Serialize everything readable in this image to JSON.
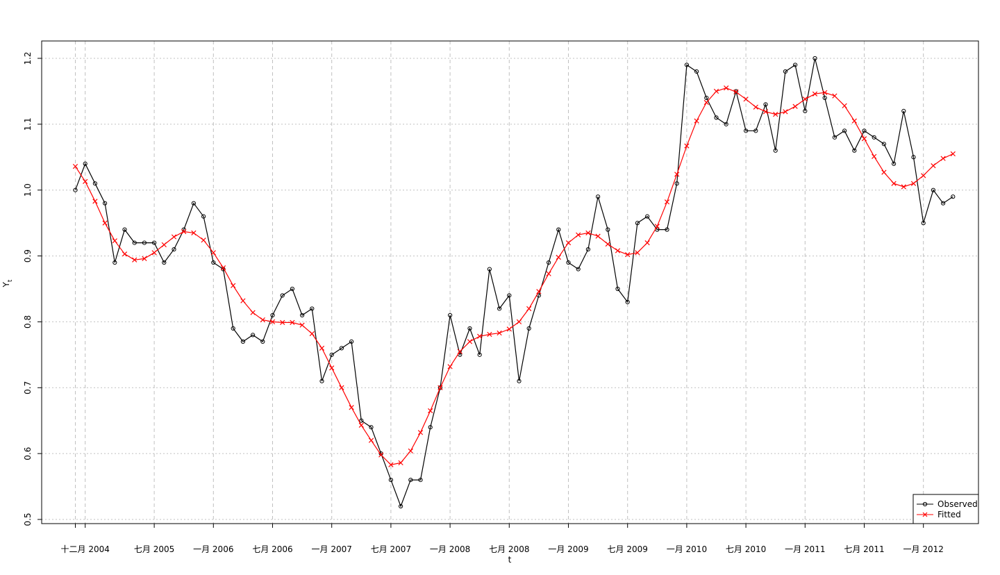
{
  "chart_data": {
    "type": "line",
    "xlabel": "t",
    "ylabel": "Y",
    "ylabel_subscript": "t",
    "ylim": [
      0.5,
      1.2
    ],
    "y_ticks": [
      0.5,
      0.6,
      0.7,
      0.8,
      0.9,
      1.0,
      1.1,
      1.2
    ],
    "y_tick_labels": [
      "0.5",
      "0.6",
      "0.7",
      "0.8",
      "0.9",
      "1.0",
      "1.1",
      "1.2"
    ],
    "x_start": "2004-12",
    "x_ticks": [
      {
        "label": "十二月 2004",
        "month_index": 0
      },
      {
        "label": "七月 2005",
        "month_index": 7
      },
      {
        "label": "一月 2006",
        "month_index": 13
      },
      {
        "label": "七月 2006",
        "month_index": 19
      },
      {
        "label": "一月 2007",
        "month_index": 25
      },
      {
        "label": "七月 2007",
        "month_index": 31
      },
      {
        "label": "一月 2008",
        "month_index": 37
      },
      {
        "label": "七月 2008",
        "month_index": 43
      },
      {
        "label": "一月 2009",
        "month_index": 49
      },
      {
        "label": "七月 2009",
        "month_index": 55
      },
      {
        "label": "一月 2010",
        "month_index": 61
      },
      {
        "label": "七月 2010",
        "month_index": 67
      },
      {
        "label": "一月 2011",
        "month_index": 73
      },
      {
        "label": "七月 2011",
        "month_index": 79
      },
      {
        "label": "一月 2012",
        "month_index": 85
      }
    ],
    "grid": true,
    "legend_position": "bottom-right",
    "colors": {
      "observed": "#000000",
      "fitted": "#ff0000",
      "grid": "#c0c0c0"
    },
    "series": [
      {
        "name": "Observed",
        "marker": "open-circle",
        "color": "#000000",
        "x": [
          -1,
          0,
          1,
          2,
          3,
          4,
          5,
          6,
          7,
          8,
          9,
          10,
          11,
          12,
          13,
          14,
          15,
          16,
          17,
          18,
          19,
          20,
          21,
          22,
          23,
          24,
          25,
          26,
          27,
          28,
          29,
          30,
          31,
          32,
          33,
          34,
          35,
          36,
          37,
          38,
          39,
          40,
          41,
          42,
          43,
          44,
          45,
          46,
          47,
          48,
          49,
          50,
          51,
          52,
          53,
          54,
          55,
          56,
          57,
          58,
          59,
          60,
          61,
          62,
          63,
          64,
          65,
          66,
          67,
          68,
          69,
          70,
          71,
          72,
          73,
          74,
          75,
          76,
          77,
          78,
          79,
          80,
          81,
          82,
          83,
          84,
          85,
          86,
          87,
          88
        ],
        "values": [
          1.0,
          1.04,
          1.01,
          0.98,
          0.89,
          0.94,
          0.92,
          0.92,
          0.92,
          0.89,
          0.91,
          0.94,
          0.98,
          0.96,
          0.89,
          0.88,
          0.79,
          0.77,
          0.78,
          0.77,
          0.81,
          0.84,
          0.85,
          0.81,
          0.82,
          0.71,
          0.75,
          0.76,
          0.77,
          0.65,
          0.64,
          0.6,
          0.56,
          0.52,
          0.56,
          0.56,
          0.64,
          0.7,
          0.81,
          0.75,
          0.79,
          0.75,
          0.88,
          0.82,
          0.84,
          0.71,
          0.79,
          0.84,
          0.89,
          0.94,
          0.89,
          0.88,
          0.91,
          0.99,
          0.94,
          0.85,
          0.83,
          0.95,
          0.96,
          0.94,
          0.94,
          1.01,
          1.19,
          1.18,
          1.14,
          1.11,
          1.1,
          1.15,
          1.09,
          1.09,
          1.13,
          1.06,
          1.18,
          1.19,
          1.12,
          1.2,
          1.14,
          1.08,
          1.09,
          1.06,
          1.09,
          1.08,
          1.07,
          1.04,
          1.12,
          1.05,
          0.95,
          1.0,
          0.98,
          0.99
        ]
      },
      {
        "name": "Fitted",
        "marker": "x",
        "color": "#ff0000",
        "x": [
          -1,
          0,
          1,
          2,
          3,
          4,
          5,
          6,
          7,
          8,
          9,
          10,
          11,
          12,
          13,
          14,
          15,
          16,
          17,
          18,
          19,
          20,
          21,
          22,
          23,
          24,
          25,
          26,
          27,
          28,
          29,
          30,
          31,
          32,
          33,
          34,
          35,
          36,
          37,
          38,
          39,
          40,
          41,
          42,
          43,
          44,
          45,
          46,
          47,
          48,
          49,
          50,
          51,
          52,
          53,
          54,
          55,
          56,
          57,
          58,
          59,
          60,
          61,
          62,
          63,
          64,
          65,
          66,
          67,
          68,
          69,
          70,
          71,
          72,
          73,
          74,
          75,
          76,
          77,
          78,
          79,
          80,
          81,
          82,
          83,
          84,
          85,
          86,
          87,
          88
        ],
        "values": [
          1.036,
          1.013,
          0.983,
          0.95,
          0.923,
          0.903,
          0.894,
          0.896,
          0.905,
          0.917,
          0.929,
          0.937,
          0.935,
          0.924,
          0.905,
          0.882,
          0.855,
          0.832,
          0.814,
          0.803,
          0.8,
          0.799,
          0.799,
          0.795,
          0.782,
          0.76,
          0.73,
          0.7,
          0.67,
          0.643,
          0.62,
          0.598,
          0.583,
          0.586,
          0.604,
          0.632,
          0.665,
          0.7,
          0.732,
          0.755,
          0.77,
          0.778,
          0.781,
          0.783,
          0.789,
          0.8,
          0.82,
          0.846,
          0.873,
          0.898,
          0.92,
          0.932,
          0.935,
          0.93,
          0.918,
          0.908,
          0.902,
          0.905,
          0.92,
          0.945,
          0.982,
          1.024,
          1.067,
          1.105,
          1.133,
          1.15,
          1.155,
          1.149,
          1.138,
          1.126,
          1.119,
          1.115,
          1.119,
          1.127,
          1.138,
          1.146,
          1.148,
          1.143,
          1.128,
          1.105,
          1.078,
          1.051,
          1.027,
          1.01,
          1.005,
          1.01,
          1.022,
          1.037,
          1.048,
          1.055
        ]
      }
    ]
  }
}
